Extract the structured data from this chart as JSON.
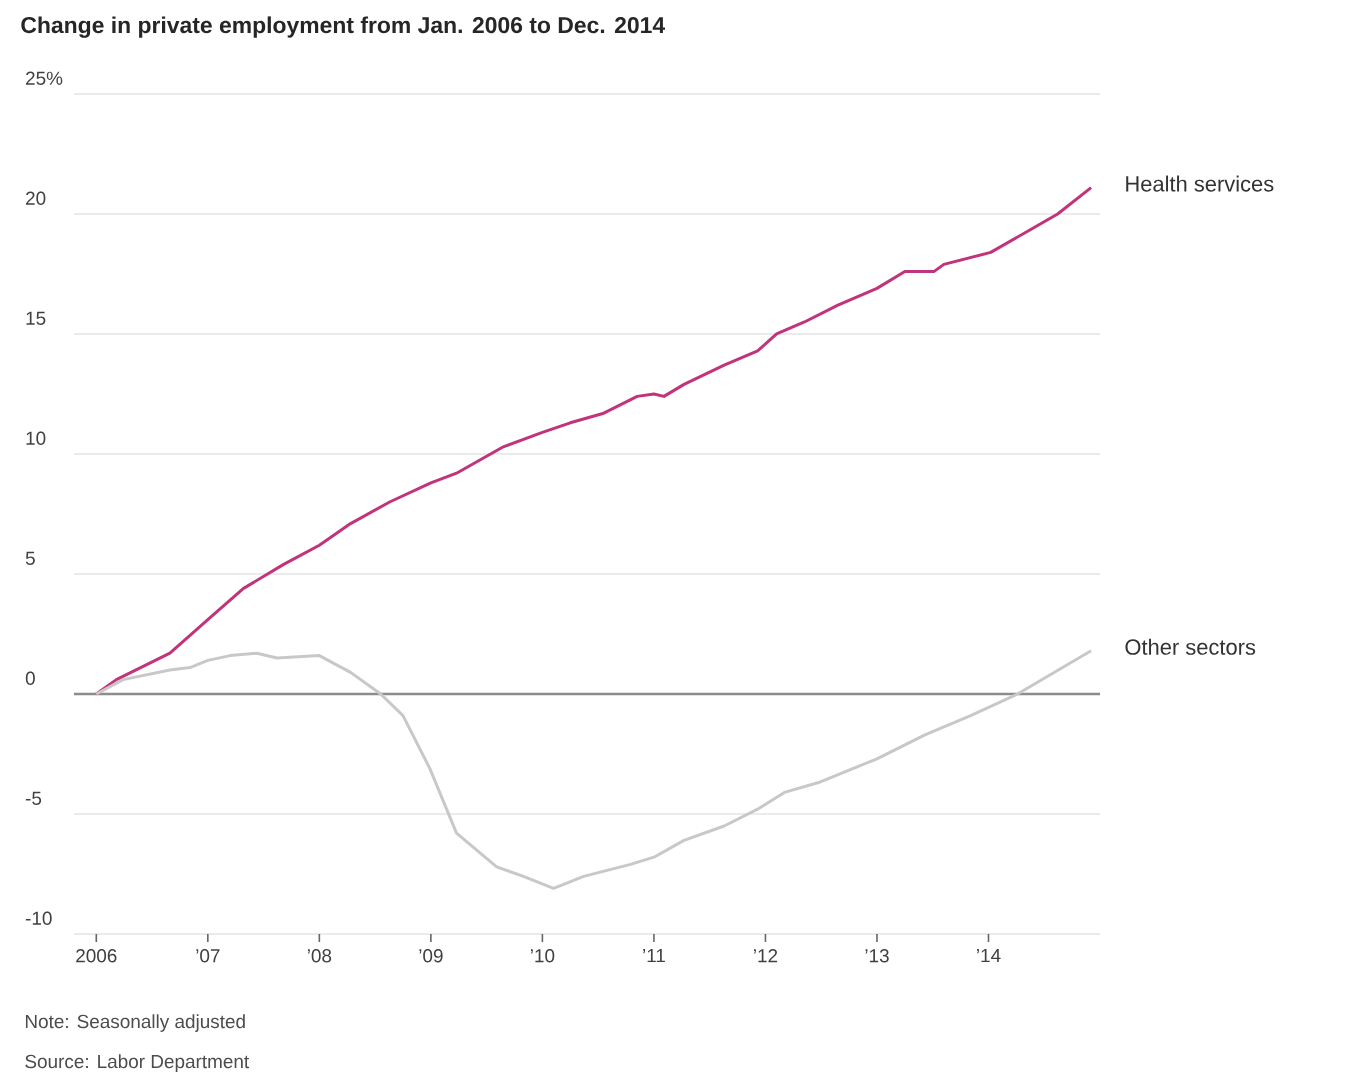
{
  "chart_data": {
    "type": "line",
    "title": "Change in private employment from Jan. 2006 to Dec. 2014",
    "xlim": [
      2005.8,
      2015
    ],
    "ylim": [
      -10,
      25
    ],
    "xticks": [
      2006,
      {
        "value": 2007,
        "label": "’07"
      },
      {
        "value": 2008,
        "label": "’08"
      },
      {
        "value": 2009,
        "label": "’09"
      },
      {
        "value": 2010,
        "label": "’10"
      },
      {
        "value": 2011,
        "label": "’11"
      },
      {
        "value": 2012,
        "label": "’12"
      },
      {
        "value": 2013,
        "label": "’13"
      },
      {
        "value": 2014,
        "label": "’14"
      }
    ],
    "yticks": [
      -10,
      -5,
      0,
      5,
      10,
      15,
      20,
      {
        "value": 25,
        "label": "25%"
      }
    ],
    "grid": "y",
    "ref_lines": [
      {
        "axis": "y",
        "value": 0,
        "color": "#8c8c8c"
      }
    ],
    "series": [
      {
        "name": "Health services",
        "color": "#c1337a",
        "x": [
          2006,
          2006.18,
          2006.66,
          2007,
          2007.32,
          2007.68,
          2008,
          2008.28,
          2008.63,
          2009,
          2009.23,
          2009.65,
          2010,
          2010.25,
          2010.55,
          2010.85,
          2011,
          2011.09,
          2011.27,
          2011.63,
          2011.93,
          2012.1,
          2012.35,
          2012.65,
          2013,
          2013.25,
          2013.51,
          2013.6,
          2014.02,
          2014.32,
          2014.62,
          2014.92
        ],
        "values": [
          0,
          0.6,
          1.7,
          3.1,
          4.4,
          5.4,
          6.2,
          7.1,
          8.0,
          8.8,
          9.2,
          10.3,
          10.9,
          11.3,
          11.7,
          12.4,
          12.5,
          12.4,
          12.9,
          13.7,
          14.3,
          15.0,
          15.5,
          16.2,
          16.9,
          17.6,
          17.6,
          17.9,
          18.4,
          19.2,
          20.0,
          21.1
        ]
      },
      {
        "name": "Other sectors",
        "color": "#c8c8c8",
        "x": [
          2006,
          2006.24,
          2006.66,
          2006.84,
          2007,
          2007.2,
          2007.44,
          2007.62,
          2008,
          2008.28,
          2008.55,
          2008.75,
          2008.99,
          2009.23,
          2009.59,
          2009.83,
          2010.1,
          2010.37,
          2010.79,
          2011,
          2011.27,
          2011.63,
          2011.93,
          2012.17,
          2012.47,
          2013,
          2013.43,
          2013.84,
          2014.26,
          2014.92
        ],
        "values": [
          0,
          0.6,
          1.0,
          1.1,
          1.4,
          1.6,
          1.7,
          1.5,
          1.6,
          0.9,
          0,
          -0.9,
          -3.1,
          -5.8,
          -7.2,
          -7.6,
          -8.1,
          -7.6,
          -7.1,
          -6.8,
          -6.1,
          -5.5,
          -4.8,
          -4.1,
          -3.7,
          -2.7,
          -1.7,
          -0.9,
          0,
          1.8
        ]
      }
    ],
    "annotations": [
      "Note: Seasonally adjusted",
      "Source: Labor Department"
    ]
  }
}
